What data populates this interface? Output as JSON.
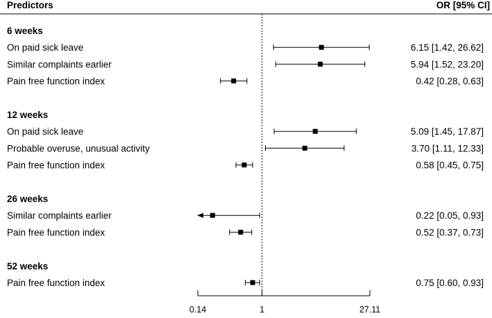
{
  "chart_data": {
    "type": "forest",
    "title": "",
    "header": {
      "predictors": "Predictors",
      "estimate": "OR [95% CI]"
    },
    "x_axis": {
      "scale": "log",
      "range": [
        0.14,
        27.11
      ],
      "ticks": [
        {
          "value": 0.14,
          "label": "0.14"
        },
        {
          "value": 1,
          "label": "1"
        },
        {
          "value": 27.11,
          "label": "27.11"
        }
      ],
      "reference_line": 1
    },
    "groups": [
      {
        "name": "6 weeks",
        "rows": [
          {
            "label": "On paid sick leave",
            "or": 6.15,
            "lower": 1.42,
            "upper": 26.62,
            "ci_text": "6.15 [1.42, 26.62]"
          },
          {
            "label": "Similar complaints earlier",
            "or": 5.94,
            "lower": 1.52,
            "upper": 23.2,
            "ci_text": "5.94 [1.52, 23.20]"
          },
          {
            "label": "Pain free function index",
            "or": 0.42,
            "lower": 0.28,
            "upper": 0.63,
            "ci_text": "0.42 [0.28,  0.63]"
          }
        ]
      },
      {
        "name": "12 weeks",
        "rows": [
          {
            "label": "On paid sick leave",
            "or": 5.09,
            "lower": 1.45,
            "upper": 17.87,
            "ci_text": "5.09 [1.45, 17.87]"
          },
          {
            "label": "Probable overuse, unusual activity",
            "or": 3.7,
            "lower": 1.11,
            "upper": 12.33,
            "ci_text": "3.70 [1.11, 12.33]"
          },
          {
            "label": "Pain free function index",
            "or": 0.58,
            "lower": 0.45,
            "upper": 0.75,
            "ci_text": "0.58 [0.45,  0.75]"
          }
        ]
      },
      {
        "name": "26 weeks",
        "rows": [
          {
            "label": "Similar complaints earlier",
            "or": 0.22,
            "lower": 0.05,
            "upper": 0.93,
            "ci_text": "0.22 [0.05,  0.93]",
            "truncated_lower": true
          },
          {
            "label": "Pain free function index",
            "or": 0.52,
            "lower": 0.37,
            "upper": 0.73,
            "ci_text": "0.52 [0.37,  0.73]"
          }
        ]
      },
      {
        "name": "52 weeks",
        "rows": [
          {
            "label": "Pain free function index",
            "or": 0.75,
            "lower": 0.6,
            "upper": 0.93,
            "ci_text": "0.75 [0.60,  0.93]"
          }
        ]
      }
    ]
  }
}
